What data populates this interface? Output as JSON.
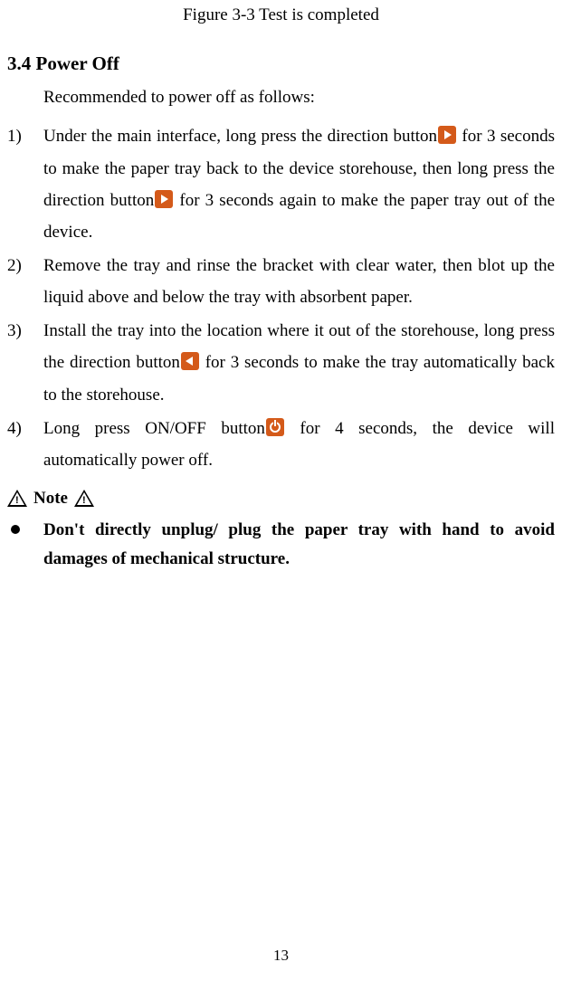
{
  "figure_caption": "Figure 3-3 Test is completed",
  "section_heading": "3.4 Power Off",
  "intro": "Recommended to power off as follows:",
  "steps": [
    {
      "num": "1)",
      "parts": [
        {
          "t": "text",
          "v": "Under the main interface, long press the direction button"
        },
        {
          "t": "icon",
          "v": "arrow-right"
        },
        {
          "t": "text",
          "v": " for 3 seconds to make the paper tray back to the device storehouse, then long press the direction button"
        },
        {
          "t": "icon",
          "v": "arrow-right"
        },
        {
          "t": "text",
          "v": " for 3 seconds again to make the paper tray out of the device."
        }
      ]
    },
    {
      "num": "2)",
      "parts": [
        {
          "t": "text",
          "v": "Remove the tray and rinse the bracket with clear water, then blot up the liquid above and below the tray with absorbent paper."
        }
      ]
    },
    {
      "num": "3)",
      "parts": [
        {
          "t": "text",
          "v": "Install the tray into the location where it out of the storehouse, long press the direction button"
        },
        {
          "t": "icon",
          "v": "arrow-left"
        },
        {
          "t": "text",
          "v": " for 3 seconds to make the tray automatically back to the storehouse."
        }
      ]
    },
    {
      "num": "4)",
      "parts": [
        {
          "t": "text",
          "v": "Long press ON/OFF button"
        },
        {
          "t": "icon",
          "v": "power"
        },
        {
          "t": "text",
          "v": " for 4 seconds, the device will automatically power off."
        }
      ]
    }
  ],
  "note_label": "Note",
  "bullets": [
    "Don't directly unplug/ plug the paper tray with hand to avoid damages of mechanical structure."
  ],
  "page_number": "13",
  "colors": {
    "icon_bg": "#d45a1a",
    "text": "#000000",
    "bg": "#ffffff"
  }
}
